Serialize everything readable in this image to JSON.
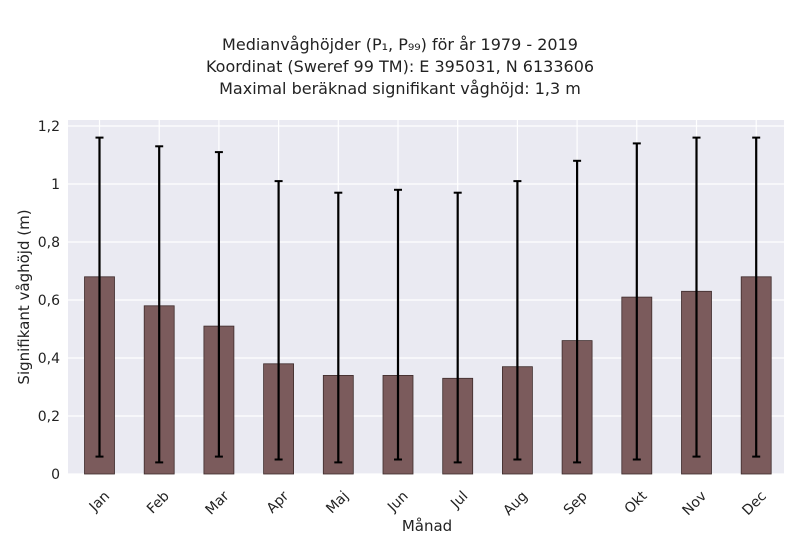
{
  "title": {
    "line1": "Medianvåghöjder (P₁, P₉₉) för år 1979 - 2019",
    "line2": "Koordinat (Sweref 99 TM): E 395031, N 6133606",
    "line3": "Maximal beräknad signifikant våghöjd: 1,3 m"
  },
  "chart_data": {
    "type": "bar",
    "categories": [
      "Jan",
      "Feb",
      "Mar",
      "Apr",
      "Maj",
      "Jun",
      "Jul",
      "Aug",
      "Sep",
      "Okt",
      "Nov",
      "Dec"
    ],
    "values": [
      0.68,
      0.58,
      0.51,
      0.38,
      0.34,
      0.34,
      0.33,
      0.37,
      0.46,
      0.61,
      0.63,
      0.68
    ],
    "p1": [
      0.06,
      0.04,
      0.06,
      0.05,
      0.04,
      0.05,
      0.04,
      0.05,
      0.04,
      0.05,
      0.06,
      0.06
    ],
    "p99": [
      1.16,
      1.13,
      1.11,
      1.01,
      0.97,
      0.98,
      0.97,
      1.01,
      1.08,
      1.14,
      1.16,
      1.16
    ],
    "xlabel": "Månad",
    "ylabel": "Signifikant våghöjd (m)",
    "ylim": [
      0,
      1.2
    ],
    "yticks": [
      "0",
      "0,2",
      "0,4",
      "0,6",
      "0,8",
      "1",
      "1,2"
    ],
    "grid": true,
    "colors": {
      "bar": "#7b5b5c",
      "bar_edge": "#3d2b2b",
      "error": "#000000",
      "plot_bg": "#eaeaf2",
      "grid": "#ffffff"
    }
  }
}
